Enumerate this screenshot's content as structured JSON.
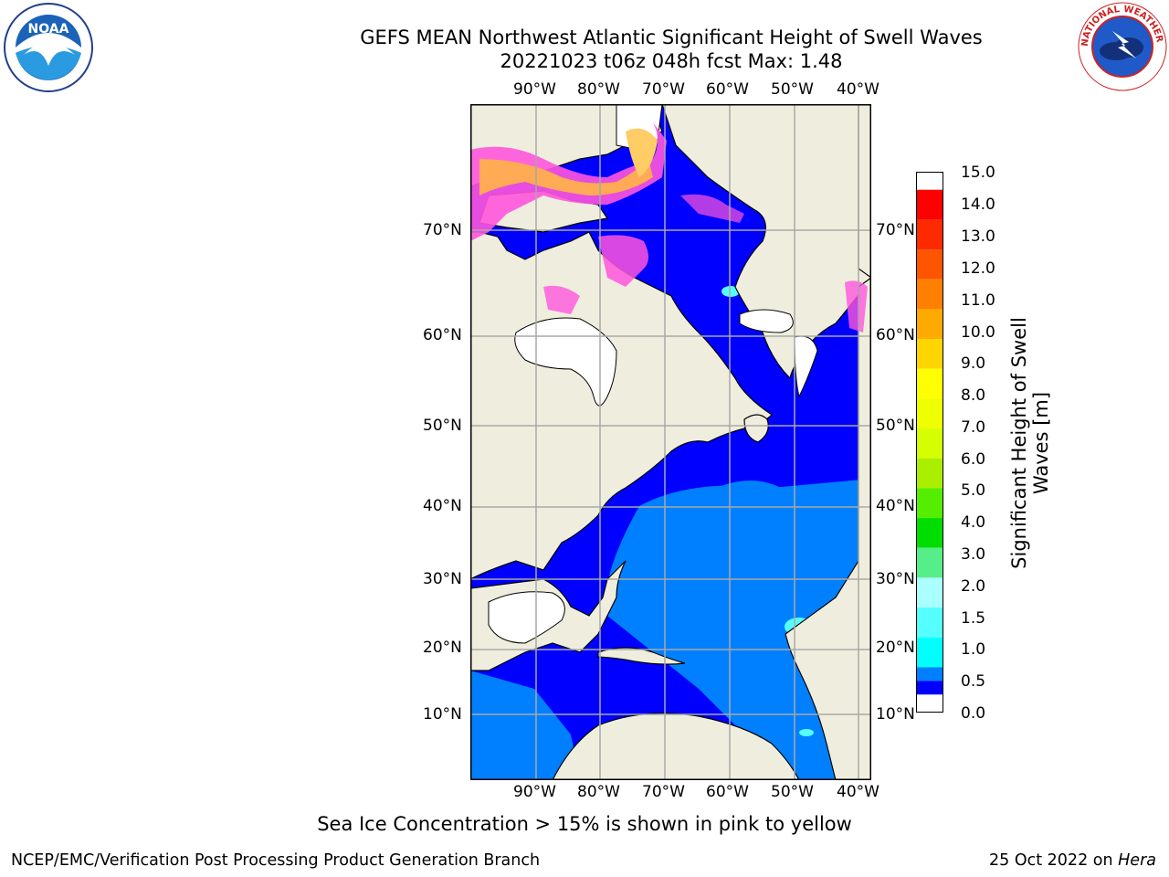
{
  "title_line1": "GEFS MEAN Northwest Atlantic Significant Height of Swell Waves",
  "title_line2": "20221023 t06z 048h fcst   Max: 1.48",
  "lon_labels": [
    "90°W",
    "80°W",
    "70°W",
    "60°W",
    "50°W",
    "40°W"
  ],
  "lat_labels": [
    "70°N",
    "60°N",
    "50°N",
    "40°N",
    "30°N",
    "20°N",
    "10°N"
  ],
  "colorbar": {
    "label": "Significant Height of Swell Waves [m]",
    "ticks": [
      "15.0",
      "14.0",
      "13.0",
      "12.0",
      "11.0",
      "10.0",
      "9.0",
      "8.0",
      "7.0",
      "6.0",
      "5.0",
      "4.0",
      "3.0",
      "2.0",
      "1.5",
      "1.0",
      "0.5",
      "0.0"
    ],
    "colors": [
      "#ff0000",
      "#ff2a00",
      "#ff5500",
      "#ff8000",
      "#ffaa00",
      "#ffd500",
      "#ffff00",
      "#eeff00",
      "#d5ff00",
      "#aaee00",
      "#55ee00",
      "#00dd00",
      "#55ee88",
      "#aaffff",
      "#55ffff",
      "#00ffff",
      "#0080ff",
      "#0000ff"
    ]
  },
  "colors": {
    "land": "#efeede",
    "swell_low": "#0000ff",
    "swell_mid": "#0080ff",
    "swell_high": "#55ffff",
    "ice": "#ff55dd",
    "grid": "#a8a8a8"
  },
  "footer_note": "Sea Ice Concentration > 15% is shown in pink to yellow",
  "credit_left": "NCEP/EMC/Verification Post Processing Product Generation Branch",
  "credit_right_text": "25 Oct 2022 on ",
  "credit_right_host": "Hera",
  "logos": {
    "noaa": "NOAA",
    "nws": "NATIONAL WEATHER SERVICE"
  }
}
